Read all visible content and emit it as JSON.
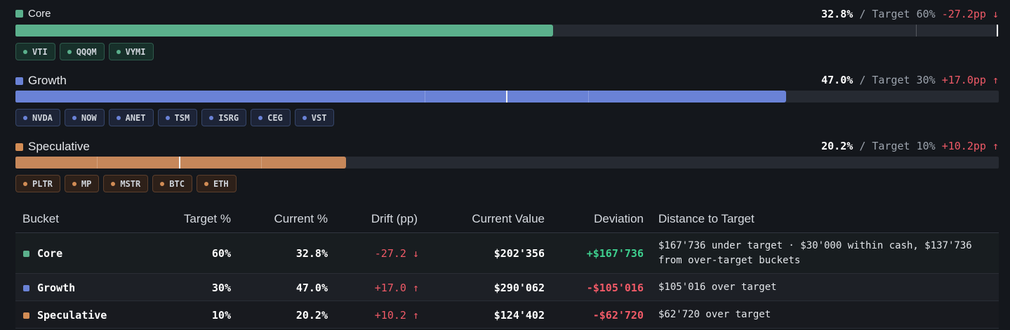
{
  "colors": {
    "core": "#5bb08c",
    "growth": "#6a82d6",
    "speculative": "#d28c55",
    "negative": "#f05a67",
    "positive": "#3ecf8e"
  },
  "buckets": [
    {
      "name": "Core",
      "current_pct": 32.8,
      "current": "32.8%",
      "separator": "/",
      "target": "Target 60%",
      "drift": "-27.2pp ↓",
      "target_fraction": 0.6,
      "current_fraction": 0.328,
      "holdings_weight_fractions": [
        0.6,
        0.2,
        0.2
      ],
      "holdings": [
        "VTI",
        "QQQM",
        "VYMI"
      ]
    },
    {
      "name": "Growth",
      "current_pct": 47.0,
      "current": "47.0%",
      "separator": "/",
      "target": "Target 30%",
      "drift": "+17.0pp ↑",
      "target_fraction": 0.3,
      "current_fraction": 0.47,
      "holdings_weight_fractions": [
        0.74,
        0.12,
        0.14
      ],
      "holdings": [
        "NVDA",
        "NOW",
        "ANET",
        "TSM",
        "ISRG",
        "CEG",
        "VST"
      ]
    },
    {
      "name": "Speculative",
      "current_pct": 20.2,
      "current": "20.2%",
      "separator": "/",
      "target": "Target 10%",
      "drift": "+10.2pp ↑",
      "target_fraction": 0.1,
      "current_fraction": 0.202,
      "holdings_weight_fractions": [
        0.24,
        0.25,
        0.51
      ],
      "holdings": [
        "PLTR",
        "MP",
        "MSTR",
        "BTC",
        "ETH"
      ]
    }
  ],
  "table": {
    "headers": [
      "Bucket",
      "Target %",
      "Current %",
      "Drift (pp)",
      "Current Value",
      "Deviation",
      "Distance to Target"
    ],
    "rows": [
      {
        "bucket": "Core",
        "target": "60%",
        "current": "32.8%",
        "drift": "-27.2 ↓",
        "value": "$202'356",
        "deviation": "+$167'736",
        "distance": "$167'736 under target · $30'000 within cash, $137'736 from over-target buckets"
      },
      {
        "bucket": "Growth",
        "target": "30%",
        "current": "47.0%",
        "drift": "+17.0 ↑",
        "value": "$290'062",
        "deviation": "-$105'016",
        "distance": "$105'016 over target"
      },
      {
        "bucket": "Speculative",
        "target": "10%",
        "current": "20.2%",
        "drift": "+10.2 ↑",
        "value": "$124'402",
        "deviation": "-$62'720",
        "distance": "$62'720 over target"
      }
    ]
  }
}
